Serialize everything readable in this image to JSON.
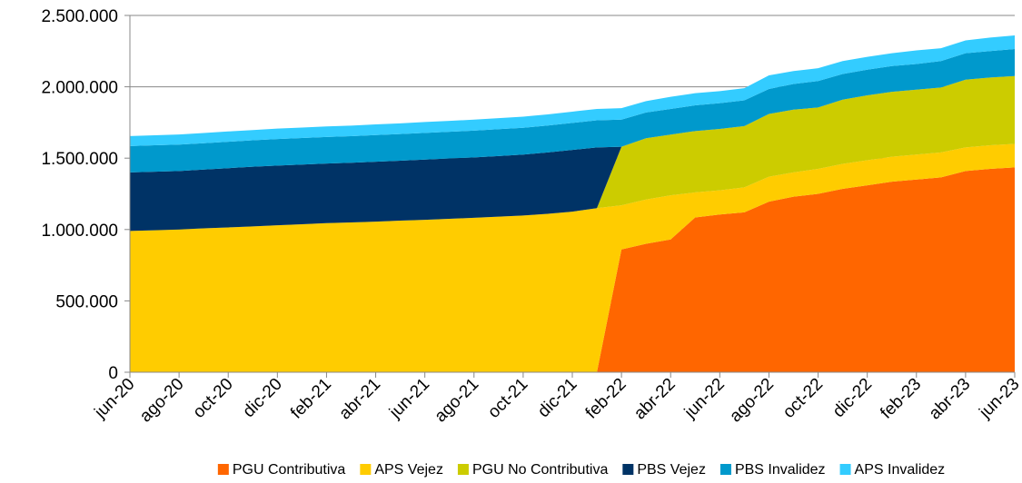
{
  "chart_data": {
    "type": "stacked-area",
    "categories": [
      "jun-20",
      null,
      "ago-20",
      null,
      "oct-20",
      null,
      "dic-20",
      null,
      "feb-21",
      null,
      "abr-21",
      null,
      "jun-21",
      null,
      "ago-21",
      null,
      "oct-21",
      null,
      "dic-21",
      null,
      "feb-22",
      null,
      "abr-22",
      null,
      "jun-22",
      null,
      "ago-22",
      null,
      "oct-22",
      null,
      "dic-22",
      null,
      "feb-23",
      null,
      "abr-23",
      null,
      "jun-23"
    ],
    "series": [
      {
        "name": "PGU Contributiva",
        "color": "#ff6600",
        "values": [
          0,
          0,
          0,
          0,
          0,
          0,
          0,
          0,
          0,
          0,
          0,
          0,
          0,
          0,
          0,
          0,
          0,
          0,
          0,
          0,
          860000,
          900000,
          930000,
          1085000,
          1105000,
          1120000,
          1195000,
          1230000,
          1250000,
          1285000,
          1310000,
          1335000,
          1350000,
          1365000,
          1410000,
          1425000,
          1435000
        ]
      },
      {
        "name": "APS Vejez",
        "color": "#ffcc00",
        "values": [
          990000,
          995000,
          1000000,
          1008000,
          1015000,
          1022000,
          1030000,
          1037000,
          1045000,
          1050000,
          1055000,
          1062000,
          1068000,
          1075000,
          1082000,
          1090000,
          1098000,
          1110000,
          1125000,
          1150000,
          310000,
          310000,
          310000,
          175000,
          170000,
          175000,
          175000,
          170000,
          175000,
          175000,
          175000,
          175000,
          175000,
          175000,
          165000,
          165000,
          165000
        ]
      },
      {
        "name": "PGU No Contributiva",
        "color": "#cccc00",
        "values": [
          0,
          0,
          0,
          0,
          0,
          0,
          0,
          0,
          0,
          0,
          0,
          0,
          0,
          0,
          0,
          0,
          0,
          0,
          0,
          0,
          410000,
          430000,
          425000,
          430000,
          430000,
          430000,
          440000,
          440000,
          430000,
          450000,
          455000,
          455000,
          455000,
          455000,
          475000,
          475000,
          475000
        ]
      },
      {
        "name": "PBS Vejez",
        "color": "#003366",
        "values": [
          410000,
          410000,
          410000,
          412000,
          415000,
          418000,
          418000,
          418000,
          417000,
          418000,
          420000,
          420000,
          422000,
          423000,
          423000,
          425000,
          427000,
          430000,
          433000,
          425000,
          0,
          0,
          0,
          0,
          0,
          0,
          0,
          0,
          0,
          0,
          0,
          0,
          0,
          0,
          0,
          0,
          0
        ]
      },
      {
        "name": "PBS Invalidez",
        "color": "#0099cc",
        "values": [
          185000,
          185000,
          185000,
          185000,
          185000,
          185000,
          186000,
          186000,
          186000,
          186000,
          187000,
          187000,
          187000,
          187000,
          188000,
          188000,
          188000,
          189000,
          189000,
          190000,
          190000,
          180000,
          180000,
          180000,
          180000,
          180000,
          175000,
          180000,
          185000,
          180000,
          180000,
          180000,
          180000,
          185000,
          185000,
          185000,
          190000
        ]
      },
      {
        "name": "APS Invalidez",
        "color": "#33ccff",
        "values": [
          70000,
          70000,
          71000,
          71000,
          72000,
          72000,
          73000,
          73000,
          74000,
          74000,
          75000,
          75000,
          76000,
          76000,
          77000,
          77000,
          78000,
          78000,
          79000,
          80000,
          80000,
          80000,
          85000,
          85000,
          85000,
          85000,
          95000,
          90000,
          90000,
          90000,
          90000,
          90000,
          95000,
          90000,
          90000,
          95000,
          95000
        ]
      }
    ],
    "ylim": [
      0,
      2500000
    ],
    "yticks": [
      0,
      {
        "value": 500000,
        "label": "500.000"
      },
      {
        "value": 1000000,
        "label": "1.000.000"
      },
      {
        "value": 1500000,
        "label": "1.500.000"
      },
      {
        "value": 2000000,
        "label": "2.000.000"
      },
      {
        "value": 2500000,
        "label": "2.500.000"
      }
    ],
    "grid": true,
    "legend": "bottom"
  }
}
